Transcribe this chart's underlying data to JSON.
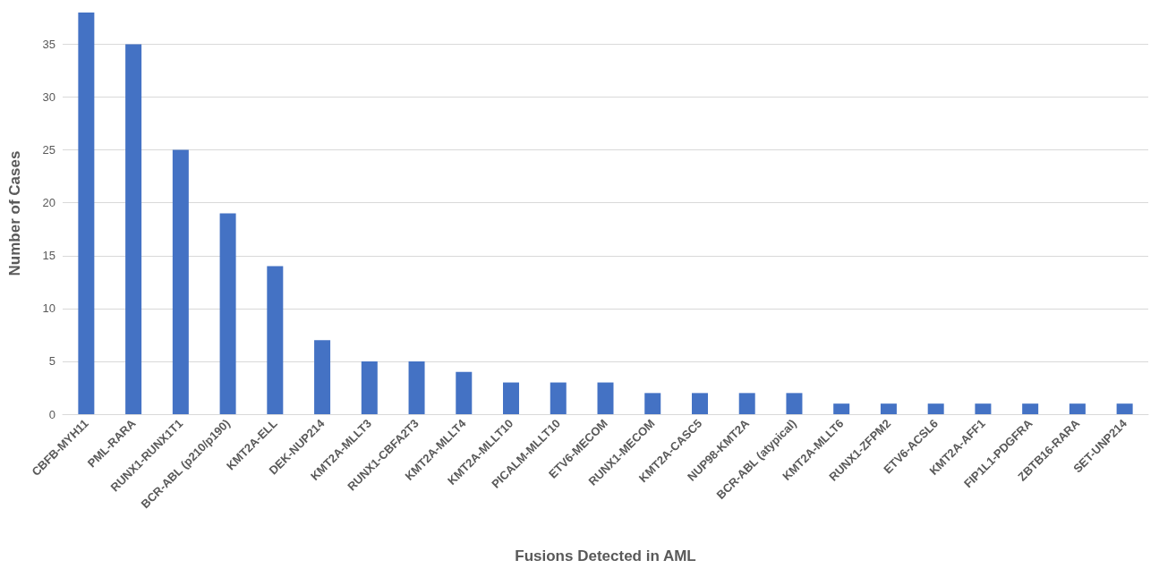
{
  "chart_data": {
    "type": "bar",
    "xlabel": "Fusions Detected in AML",
    "ylabel": "Number of Cases",
    "categories": [
      "CBFB-MYH11",
      "PML-RARA",
      "RUNX1-RUNX1T1",
      "BCR-ABL (p210/p190)",
      "KMT2A-ELL",
      "DEK-NUP214",
      "KMT2A-MLLT3",
      "RUNX1-CBFA2T3",
      "KMT2A-MLLT4",
      "KMT2A-MLLT10",
      "PICALM-MLLT10",
      "ETV6-MECOM",
      "RUNX1-MECOM",
      "KMT2A-CASC5",
      "NUP98-KMT2A",
      "BCR-ABL (atypical)",
      "KMT2A-MLLT6",
      "RUNX1-ZFPM2",
      "ETV6-ACSL6",
      "KMT2A-AFF1",
      "FIP1L1-PDGFRA",
      "ZBTB16-RARA",
      "SET-UNP214"
    ],
    "values": [
      38,
      35,
      25,
      19,
      14,
      7,
      5,
      5,
      4,
      3,
      3,
      3,
      2,
      2,
      2,
      2,
      1,
      1,
      1,
      1,
      1,
      1,
      1
    ],
    "color": "#4472c4",
    "ylim": [
      0,
      38
    ],
    "yticks": [
      0,
      5,
      10,
      15,
      20,
      25,
      30,
      35
    ],
    "grid": "y"
  }
}
